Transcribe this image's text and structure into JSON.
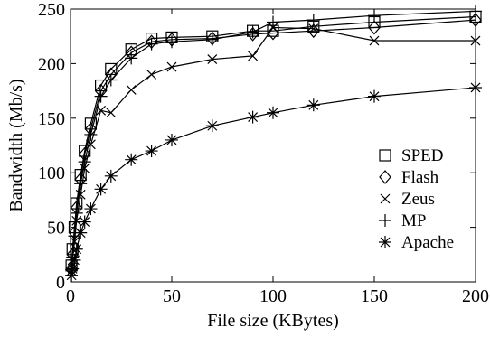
{
  "chart_data": {
    "type": "line",
    "xlabel": "File size (KBytes)",
    "ylabel": "Bandwidth (Mb/s)",
    "xlim": [
      0,
      200
    ],
    "ylim": [
      0,
      250
    ],
    "xticks": [
      0,
      50,
      100,
      150,
      200
    ],
    "yticks": [
      0,
      50,
      100,
      150,
      200,
      250
    ],
    "grid": false,
    "legend_position": "center-right",
    "series": [
      {
        "name": "SPED",
        "marker": "square",
        "x": [
          0.5,
          1,
          2,
          3,
          5,
          7,
          10,
          15,
          20,
          30,
          40,
          50,
          70,
          90,
          100,
          120,
          150,
          200
        ],
        "y": [
          15,
          30,
          50,
          72,
          98,
          120,
          145,
          180,
          195,
          213,
          223,
          224,
          225,
          230,
          230,
          234,
          238,
          243
        ]
      },
      {
        "name": "Flash",
        "marker": "diamond",
        "x": [
          0.5,
          1,
          2,
          3,
          5,
          7,
          10,
          15,
          20,
          30,
          40,
          50,
          70,
          90,
          100,
          120,
          150,
          200
        ],
        "y": [
          12,
          25,
          45,
          68,
          94,
          117,
          140,
          175,
          190,
          210,
          220,
          222,
          223,
          227,
          228,
          230,
          233,
          240
        ]
      },
      {
        "name": "Zeus",
        "marker": "x",
        "x": [
          0.5,
          1,
          2,
          3,
          5,
          7,
          10,
          15,
          20,
          30,
          40,
          50,
          70,
          90,
          100,
          120,
          150,
          200
        ],
        "y": [
          10,
          20,
          37,
          56,
          80,
          104,
          126,
          157,
          155,
          176,
          190,
          197,
          204,
          207,
          233,
          232,
          221,
          221
        ]
      },
      {
        "name": "MP",
        "marker": "plus",
        "x": [
          0.5,
          1,
          2,
          3,
          5,
          7,
          10,
          15,
          20,
          30,
          40,
          50,
          70,
          90,
          100,
          120,
          150,
          200
        ],
        "y": [
          11,
          22,
          42,
          63,
          90,
          110,
          135,
          170,
          185,
          205,
          218,
          220,
          222,
          229,
          238,
          240,
          244,
          248
        ]
      },
      {
        "name": "Apache",
        "marker": "asterisk",
        "x": [
          0.5,
          1,
          2,
          3,
          5,
          7,
          10,
          15,
          20,
          30,
          40,
          50,
          70,
          90,
          100,
          120,
          150,
          200
        ],
        "y": [
          6,
          12,
          20,
          30,
          45,
          55,
          67,
          85,
          97,
          112,
          120,
          130,
          143,
          151,
          155,
          162,
          170,
          178
        ]
      }
    ]
  }
}
